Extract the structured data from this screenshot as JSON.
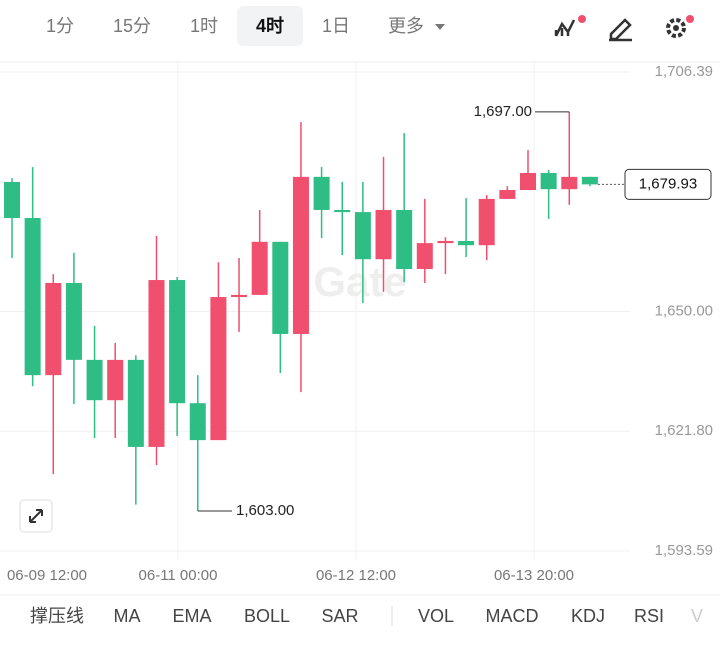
{
  "tabs": {
    "intervals": [
      "1分",
      "15分",
      "1时",
      "4时",
      "1日",
      "更多"
    ],
    "selected": 3
  },
  "chart_data": {
    "type": "candlestick",
    "open": [
      1680.5,
      1672.0,
      1635.0,
      1656.7,
      1638.6,
      1629.1,
      1638.6,
      1618.1,
      1657.4,
      1628.4,
      1619.7,
      1653.4,
      1653.9,
      1666.4,
      1644.7,
      1681.7,
      1673.9,
      1673.4,
      1662.3,
      1673.9,
      1660.0,
      1666.1,
      1666.6,
      1665.6,
      1676.5,
      1678.6,
      1682.6,
      1678.8,
      1681.7
    ],
    "high": [
      1681.4,
      1684.0,
      1658.8,
      1663.8,
      1646.6,
      1642.6,
      1639.7,
      1667.8,
      1658.1,
      1635.0,
      1661.6,
      1662.6,
      1673.9,
      1666.4,
      1694.6,
      1684.0,
      1680.5,
      1680.5,
      1686.4,
      1692.0,
      1676.5,
      1667.5,
      1676.7,
      1677.4,
      1679.5,
      1688.0,
      1683.3,
      1697.0,
      1681.7
    ],
    "low": [
      1662.6,
      1632.4,
      1611.7,
      1628.2,
      1620.2,
      1620.2,
      1604.5,
      1613.8,
      1620.7,
      1603.0,
      1619.7,
      1645.2,
      1653.9,
      1635.5,
      1631.0,
      1667.3,
      1663.3,
      1652.0,
      1654.6,
      1656.9,
      1656.7,
      1658.8,
      1662.8,
      1662.1,
      1676.5,
      1678.6,
      1671.8,
      1675.1,
      1679.5
    ],
    "close": [
      1672.0,
      1635.0,
      1656.7,
      1638.6,
      1629.1,
      1638.6,
      1618.1,
      1657.4,
      1628.4,
      1619.7,
      1653.4,
      1653.9,
      1666.4,
      1644.7,
      1681.7,
      1673.9,
      1673.4,
      1662.3,
      1673.9,
      1660.0,
      1666.1,
      1666.6,
      1665.6,
      1676.5,
      1678.6,
      1682.6,
      1678.8,
      1681.7,
      1679.93
    ],
    "up_color": "#f0506e",
    "down_color": "#2ebd85",
    "ylim": [
      1593.59,
      1706.39
    ],
    "yticks": [
      {
        "value": 1593.59,
        "label": "1,593.59"
      },
      {
        "value": 1621.8,
        "label": "1,621.80"
      },
      {
        "value": 1650,
        "label": "1,650.00"
      },
      {
        "value": 1706.39,
        "label": "1,706.39"
      }
    ],
    "xtick_labels": [
      "06-09 12:00",
      "06-11 00:00",
      "06-12 12:00",
      "06-13 20:00"
    ],
    "max_label": {
      "value": 1697,
      "label": "1,697.00"
    },
    "min_label": {
      "value": 1603,
      "label": "1,603.00"
    },
    "last_price": {
      "value": 1679.93,
      "label": "1,679.93"
    },
    "watermark": "Gate"
  },
  "indicators": [
    "撑压线",
    "MA",
    "EMA",
    "BOLL",
    "SAR",
    "VOL",
    "MACD",
    "KDJ",
    "RSI",
    "V"
  ]
}
